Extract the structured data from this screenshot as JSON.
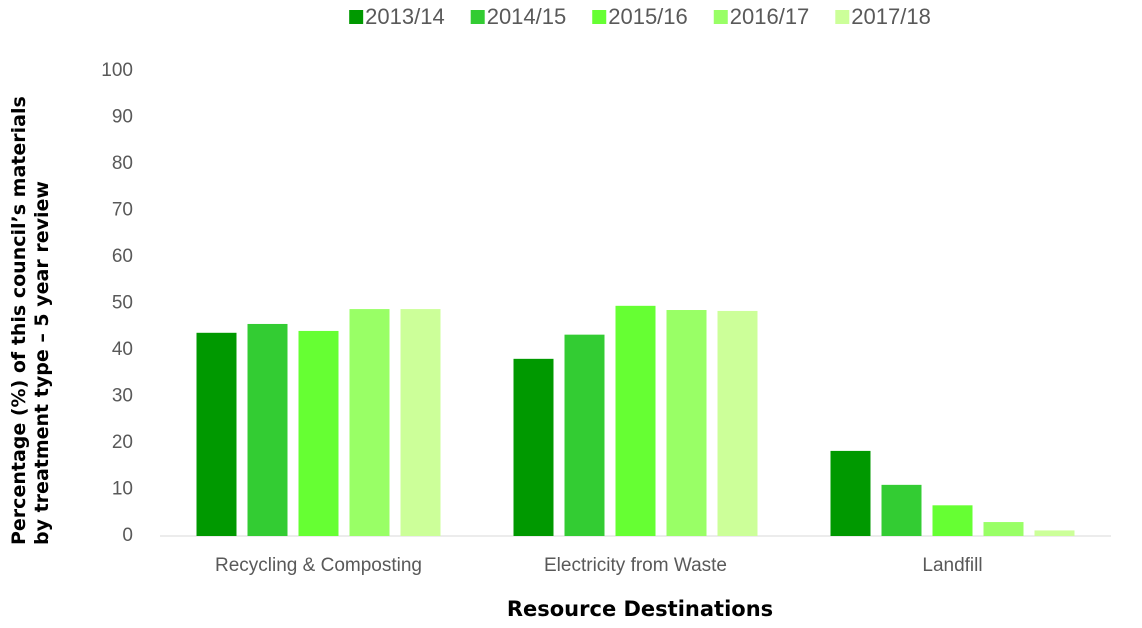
{
  "chart_data": {
    "type": "bar",
    "categories": [
      "Recycling & Composting",
      "Electricity from Waste",
      "Landfill"
    ],
    "series": [
      {
        "name": "2013/14",
        "color": "#009900",
        "values": [
          43.7,
          38.1,
          18.3
        ]
      },
      {
        "name": "2014/15",
        "color": "#33cc33",
        "values": [
          45.6,
          43.3,
          11.0
        ]
      },
      {
        "name": "2015/16",
        "color": "#66ff33",
        "values": [
          44.1,
          49.5,
          6.6
        ]
      },
      {
        "name": "2016/17",
        "color": "#99ff66",
        "values": [
          48.8,
          48.6,
          3.0
        ]
      },
      {
        "name": "2017/18",
        "color": "#ccff99",
        "values": [
          48.8,
          48.4,
          1.2
        ]
      }
    ],
    "ylim": [
      0,
      100
    ],
    "yticks": [
      0,
      10,
      20,
      30,
      40,
      50,
      60,
      70,
      80,
      90,
      100
    ],
    "y_label": "Percentage (%) of this council’s materials by treatment type – 5 year review",
    "x_label": "Resource Destinations",
    "legend": "top",
    "grid": false
  }
}
